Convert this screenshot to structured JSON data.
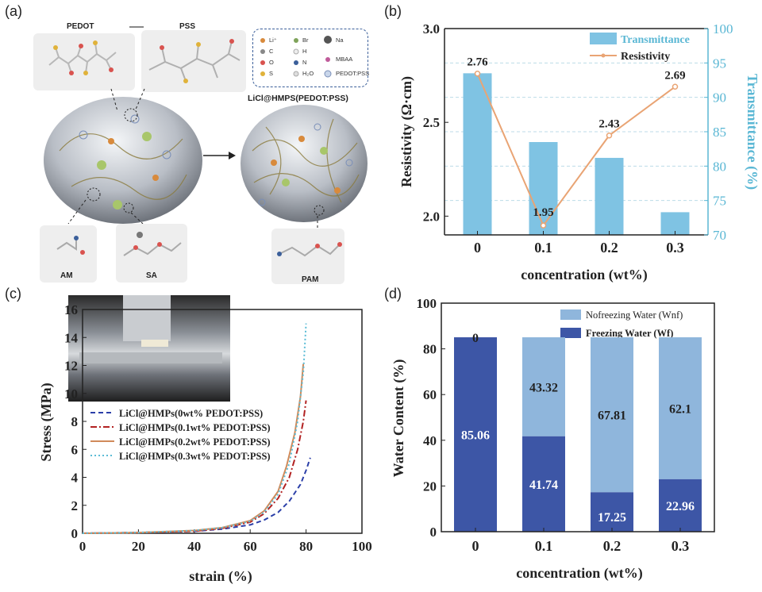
{
  "panel_a": {
    "label": "(a)",
    "pedot": "PEDOT",
    "pss": "PSS",
    "title_right": "LiCl@HMPS(PEDOT:PSS)",
    "legend": [
      "Li⁺",
      "Br",
      "Na",
      "C",
      "H",
      "O",
      "N",
      "MBAA",
      "S",
      "H₂O",
      "PEDOT:PSS"
    ],
    "am": "AM",
    "sa": "SA",
    "pam": "PAM"
  },
  "chart_data": [
    {
      "panel": "(b)",
      "type": "bar+line",
      "categories": [
        "0",
        "0.1",
        "0.2",
        "0.3"
      ],
      "series": [
        {
          "name": "Transmittance",
          "type": "bar",
          "axis": "right",
          "values": [
            93.5,
            83.5,
            81.2,
            73.3
          ]
        },
        {
          "name": "Resistivity",
          "type": "line",
          "axis": "left",
          "values": [
            2.76,
            1.95,
            2.43,
            2.69
          ]
        }
      ],
      "data_labels": [
        "2.76",
        "1.95",
        "2.43",
        "2.69"
      ],
      "xlabel": "concentration (wt%)",
      "ylabel": "Resistivity (Ω·cm)",
      "ylabel_right": "Transmittance (%)",
      "ylim": [
        1.9,
        3.0
      ],
      "yticks": [
        "2.0",
        "2.5",
        "3.0"
      ],
      "ylim_right": [
        70,
        100
      ],
      "yticks_right": [
        "70",
        "75",
        "80",
        "85",
        "90",
        "95",
        "100"
      ],
      "colors": {
        "bar": "#7fc3e3",
        "line": "#e9a474",
        "right_axis": "#5ab7d4"
      }
    },
    {
      "panel": "(c)",
      "type": "line",
      "x_range": [
        0,
        100
      ],
      "xticks": [
        "0",
        "20",
        "40",
        "60",
        "80",
        "100"
      ],
      "ylim": [
        0,
        16
      ],
      "yticks": [
        "0",
        "2",
        "4",
        "6",
        "8",
        "10",
        "12",
        "14",
        "16"
      ],
      "xlabel": "strain (%)",
      "ylabel": "Stress (MPa)",
      "series": [
        {
          "name": "LiCl@HMPs(0wt% PEDOT:PSS)",
          "color": "#2b3fa8",
          "dash": "6,4",
          "x": [
            0,
            20,
            40,
            50,
            60,
            65,
            70,
            74,
            78,
            80,
            81.5
          ],
          "y": [
            0,
            0.05,
            0.15,
            0.3,
            0.6,
            0.95,
            1.5,
            2.3,
            3.5,
            4.5,
            5.4
          ]
        },
        {
          "name": "LiCl@HMPs(0.1wt% PEDOT:PSS)",
          "color": "#b22222",
          "dash": "8,3,2,3",
          "x": [
            0,
            20,
            40,
            50,
            60,
            65,
            70,
            74,
            77,
            79,
            80
          ],
          "y": [
            0,
            0.05,
            0.15,
            0.35,
            0.8,
            1.4,
            2.5,
            4,
            6,
            8,
            9.5
          ]
        },
        {
          "name": "LiCl@HMPs(0.2wt% PEDOT:PSS)",
          "color": "#d08a5a",
          "dash": "",
          "x": [
            0,
            20,
            40,
            50,
            60,
            65,
            70,
            73,
            76,
            78,
            79
          ],
          "y": [
            0,
            0.05,
            0.2,
            0.4,
            0.9,
            1.6,
            3,
            4.8,
            7.2,
            9.8,
            12.1
          ]
        },
        {
          "name": "LiCl@HMPs(0.3wt% PEDOT:PSS)",
          "color": "#5bbcd6",
          "dash": "2,3",
          "x": [
            0,
            20,
            40,
            50,
            60,
            65,
            70,
            74,
            77,
            79,
            80
          ],
          "y": [
            0,
            0.05,
            0.2,
            0.4,
            0.85,
            1.5,
            2.8,
            5,
            8,
            11.5,
            15
          ]
        }
      ]
    },
    {
      "panel": "(d)",
      "type": "stacked-bar",
      "categories": [
        "0",
        "0.1",
        "0.2",
        "0.3"
      ],
      "series": [
        {
          "name": "Freezing Water (Wf)",
          "color": "#3d56a6",
          "values": [
            85.06,
            41.74,
            17.25,
            22.96
          ]
        },
        {
          "name": "Nofreezing Water (Wnf)",
          "color": "#8fb6dc",
          "values": [
            0,
            43.32,
            67.81,
            62.1
          ]
        }
      ],
      "labels_bottom": [
        "85.06",
        "41.74",
        "17.25",
        "22.96"
      ],
      "labels_top": [
        "0",
        "43.32",
        "67.81",
        "62.1"
      ],
      "legend": [
        "Nofreezing Water (Wnf)",
        "Freezing Water (Wf)"
      ],
      "xlabel": "concentration (wt%)",
      "ylabel": "Water Content (%)",
      "ylim": [
        0,
        100
      ],
      "yticks": [
        "0",
        "20",
        "40",
        "60",
        "80",
        "100"
      ]
    }
  ]
}
